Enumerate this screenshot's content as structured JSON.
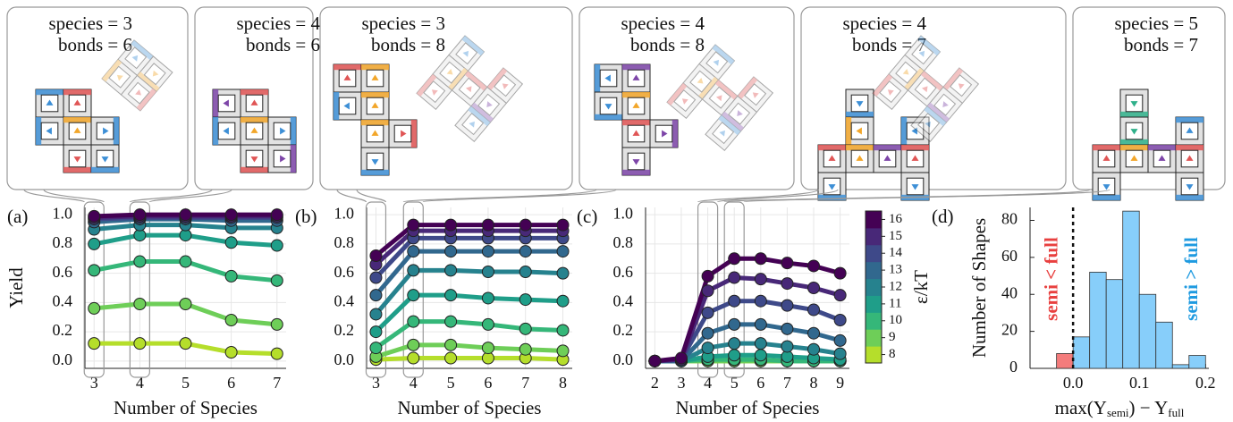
{
  "structures": [
    {
      "species": "species = 3",
      "bonds": "bonds = 6"
    },
    {
      "species": "species = 4",
      "bonds": "bonds = 6"
    },
    {
      "species": "species = 3",
      "bonds": "bonds = 8"
    },
    {
      "species": "species = 4",
      "bonds": "bonds = 8"
    },
    {
      "species": "species = 4",
      "bonds": "bonds = 7"
    },
    {
      "species": "species = 5",
      "bonds": "bonds = 7"
    }
  ],
  "chart_data": [
    {
      "type": "line",
      "label": "(a)",
      "ylabel": "Yield",
      "xlabel": "Number of Species",
      "x": [
        3,
        4,
        5,
        6,
        7
      ],
      "xlim": [
        2.8,
        7.2
      ],
      "xticks": [
        3,
        4,
        5,
        6,
        7
      ],
      "ylim": [
        -0.05,
        1.05
      ],
      "yticks": [
        {
          "value": 0,
          "label": "0.0"
        },
        0.2,
        0.4,
        0.6,
        0.8,
        {
          "value": 1,
          "label": "1.0"
        }
      ],
      "grid": true,
      "highlights": [
        3,
        4
      ],
      "series": [
        {
          "color": "#b5de2b",
          "values": [
            0.12,
            0.12,
            0.12,
            0.06,
            0.05
          ]
        },
        {
          "color": "#6ece58",
          "values": [
            0.36,
            0.39,
            0.39,
            0.28,
            0.25
          ]
        },
        {
          "color": "#35b779",
          "values": [
            0.62,
            0.68,
            0.68,
            0.58,
            0.55
          ]
        },
        {
          "color": "#1f9e89",
          "values": [
            0.8,
            0.86,
            0.86,
            0.81,
            0.79
          ]
        },
        {
          "color": "#26828e",
          "values": [
            0.9,
            0.93,
            0.93,
            0.91,
            0.91
          ]
        },
        {
          "color": "#31688e",
          "values": [
            0.95,
            0.97,
            0.97,
            0.96,
            0.96
          ]
        },
        {
          "color": "#3e4989",
          "values": [
            0.97,
            0.98,
            0.98,
            0.98,
            0.98
          ]
        },
        {
          "color": "#482878",
          "values": [
            0.98,
            0.99,
            0.99,
            0.99,
            0.99
          ]
        },
        {
          "color": "#440154",
          "values": [
            0.99,
            1.0,
            1.0,
            1.0,
            1.0
          ]
        }
      ]
    },
    {
      "type": "line",
      "label": "(b)",
      "xlabel": "Number of Species",
      "x": [
        3,
        4,
        5,
        6,
        7,
        8
      ],
      "xlim": [
        2.75,
        8.25
      ],
      "xticks": [
        3,
        4,
        5,
        6,
        7,
        8
      ],
      "ylim": [
        -0.05,
        1.05
      ],
      "yticks": [
        {
          "value": 0,
          "label": "0.0"
        },
        0.2,
        0.4,
        0.6,
        0.8,
        {
          "value": 1,
          "label": "1.0"
        }
      ],
      "grid": true,
      "highlights": [
        3,
        4
      ],
      "series": [
        {
          "color": "#b5de2b",
          "values": [
            0.01,
            0.02,
            0.02,
            0.02,
            0.02,
            0.01
          ]
        },
        {
          "color": "#6ece58",
          "values": [
            0.03,
            0.11,
            0.11,
            0.09,
            0.08,
            0.07
          ]
        },
        {
          "color": "#35b779",
          "values": [
            0.09,
            0.27,
            0.27,
            0.25,
            0.22,
            0.21
          ]
        },
        {
          "color": "#1f9e89",
          "values": [
            0.2,
            0.45,
            0.45,
            0.43,
            0.42,
            0.41
          ]
        },
        {
          "color": "#26828e",
          "values": [
            0.32,
            0.62,
            0.62,
            0.61,
            0.61,
            0.6
          ]
        },
        {
          "color": "#31688e",
          "values": [
            0.45,
            0.75,
            0.75,
            0.75,
            0.75,
            0.75
          ]
        },
        {
          "color": "#3e4989",
          "values": [
            0.57,
            0.84,
            0.84,
            0.84,
            0.84,
            0.84
          ]
        },
        {
          "color": "#482878",
          "values": [
            0.66,
            0.89,
            0.89,
            0.89,
            0.89,
            0.89
          ]
        },
        {
          "color": "#440154",
          "values": [
            0.72,
            0.93,
            0.93,
            0.93,
            0.93,
            0.93
          ]
        }
      ]
    },
    {
      "type": "line",
      "label": "(c)",
      "xlabel": "Number of Species",
      "x": [
        2,
        3,
        4,
        5,
        6,
        7,
        8,
        9
      ],
      "xlim": [
        1.65,
        9.35
      ],
      "xticks": [
        2,
        3,
        4,
        5,
        6,
        7,
        8,
        9
      ],
      "ylim": [
        -0.05,
        1.05
      ],
      "yticks": [
        {
          "value": 0,
          "label": "0.0"
        },
        0.2,
        0.4,
        0.6,
        0.8,
        {
          "value": 1,
          "label": "1.0"
        }
      ],
      "grid": true,
      "highlights": [
        4,
        5
      ],
      "series": [
        {
          "color": "#b5de2b",
          "values": [
            0,
            0,
            0,
            0,
            0,
            0,
            0,
            0
          ]
        },
        {
          "color": "#6ece58",
          "values": [
            0,
            0,
            0,
            0,
            0,
            0,
            0,
            0
          ]
        },
        {
          "color": "#35b779",
          "values": [
            0,
            0,
            0.01,
            0.01,
            0.01,
            0,
            0,
            0
          ]
        },
        {
          "color": "#1f9e89",
          "values": [
            0,
            0,
            0.03,
            0.04,
            0.04,
            0.03,
            0.02,
            0.01
          ]
        },
        {
          "color": "#26828e",
          "values": [
            0,
            0,
            0.09,
            0.12,
            0.12,
            0.1,
            0.08,
            0.05
          ]
        },
        {
          "color": "#31688e",
          "values": [
            0,
            0,
            0.19,
            0.25,
            0.25,
            0.22,
            0.19,
            0.14
          ]
        },
        {
          "color": "#3e4989",
          "values": [
            0,
            0.01,
            0.33,
            0.41,
            0.41,
            0.38,
            0.35,
            0.28
          ]
        },
        {
          "color": "#482878",
          "values": [
            0,
            0.01,
            0.48,
            0.57,
            0.56,
            0.53,
            0.5,
            0.45
          ]
        },
        {
          "color": "#440154",
          "values": [
            0,
            0.02,
            0.58,
            0.7,
            0.7,
            0.67,
            0.65,
            0.6
          ]
        }
      ],
      "colorbar": {
        "label": "ε/kT",
        "ticks": [
          8,
          9,
          10,
          11,
          12,
          13,
          14,
          15,
          16
        ],
        "colors": [
          "#b5de2b",
          "#6ece58",
          "#35b779",
          "#1f9e89",
          "#26828e",
          "#31688e",
          "#3e4989",
          "#482878",
          "#440154"
        ]
      }
    },
    {
      "type": "histogram",
      "label": "(d)",
      "ylabel": "Number of Shapes",
      "xlabel_parts": [
        "max(Y",
        "semi",
        ") − Y",
        "full"
      ],
      "bins": [
        -0.025,
        0,
        0.025,
        0.05,
        0.075,
        0.1,
        0.125,
        0.15,
        0.175,
        0.2
      ],
      "values": [
        8,
        17,
        52,
        48,
        85,
        40,
        25,
        2,
        7
      ],
      "colors": [
        "#f47c7c",
        "#87cefa",
        "#87cefa",
        "#87cefa",
        "#87cefa",
        "#87cefa",
        "#87cefa",
        "#87cefa",
        "#87cefa"
      ],
      "xlim": [
        -0.065,
        0.205
      ],
      "xticks": [
        {
          "value": 0,
          "label": "0.0"
        },
        0.1,
        0.2
      ],
      "ylim": [
        0,
        87
      ],
      "yticks": [
        0,
        20,
        40,
        60,
        80
      ],
      "threshold": 0,
      "annotations": [
        {
          "text": "semi < full",
          "color": "#e8403f"
        },
        {
          "text": "semi > full",
          "color": "#1e9ae0"
        }
      ]
    }
  ]
}
